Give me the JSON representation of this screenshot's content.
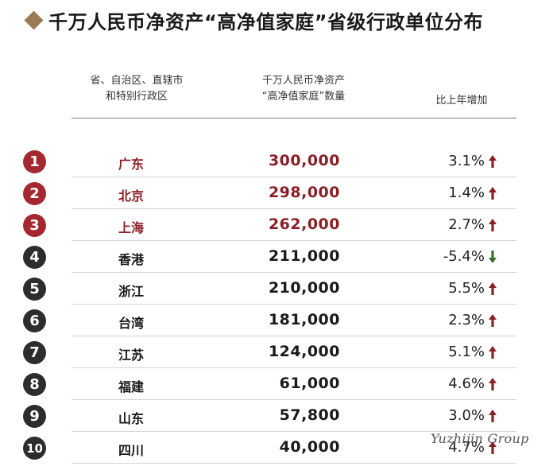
{
  "title": "千万人民币净资产“高净值家庭”省级行政单位分布",
  "columns": {
    "region": [
      "省、自治区、直辖市",
      "和特别行政区"
    ],
    "count": [
      "千万人民币净资产",
      "“高净值家庭”数量"
    ],
    "change": "比上年增加"
  },
  "colors": {
    "accent_top3": "#a5282f",
    "rank_default": "#2d2d2d",
    "arrow_up": "#8c1f26",
    "arrow_down": "#3f6b33",
    "diamond": "#9a7b55"
  },
  "rows": [
    {
      "rank": "1",
      "region": "广东",
      "count": "300,000",
      "change": "3.1%",
      "trend": "up",
      "highlight": true
    },
    {
      "rank": "2",
      "region": "北京",
      "count": "298,000",
      "change": "1.4%",
      "trend": "up",
      "highlight": true
    },
    {
      "rank": "3",
      "region": "上海",
      "count": "262,000",
      "change": "2.7%",
      "trend": "up",
      "highlight": true
    },
    {
      "rank": "4",
      "region": "香港",
      "count": "211,000",
      "change": "-5.4%",
      "trend": "down",
      "highlight": false
    },
    {
      "rank": "5",
      "region": "浙江",
      "count": "210,000",
      "change": "5.5%",
      "trend": "up",
      "highlight": false
    },
    {
      "rank": "6",
      "region": "台湾",
      "count": "181,000",
      "change": "2.3%",
      "trend": "up",
      "highlight": false
    },
    {
      "rank": "7",
      "region": "江苏",
      "count": "124,000",
      "change": "5.1%",
      "trend": "up",
      "highlight": false
    },
    {
      "rank": "8",
      "region": "福建",
      "count": "61,000",
      "change": "4.6%",
      "trend": "up",
      "highlight": false
    },
    {
      "rank": "9",
      "region": "山东",
      "count": "57,800",
      "change": "3.0%",
      "trend": "up",
      "highlight": false
    },
    {
      "rank": "10",
      "region": "四川",
      "count": "40,000",
      "change": "4.7%",
      "trend": "up",
      "highlight": false
    }
  ],
  "watermark": "Yuzhijin Group"
}
